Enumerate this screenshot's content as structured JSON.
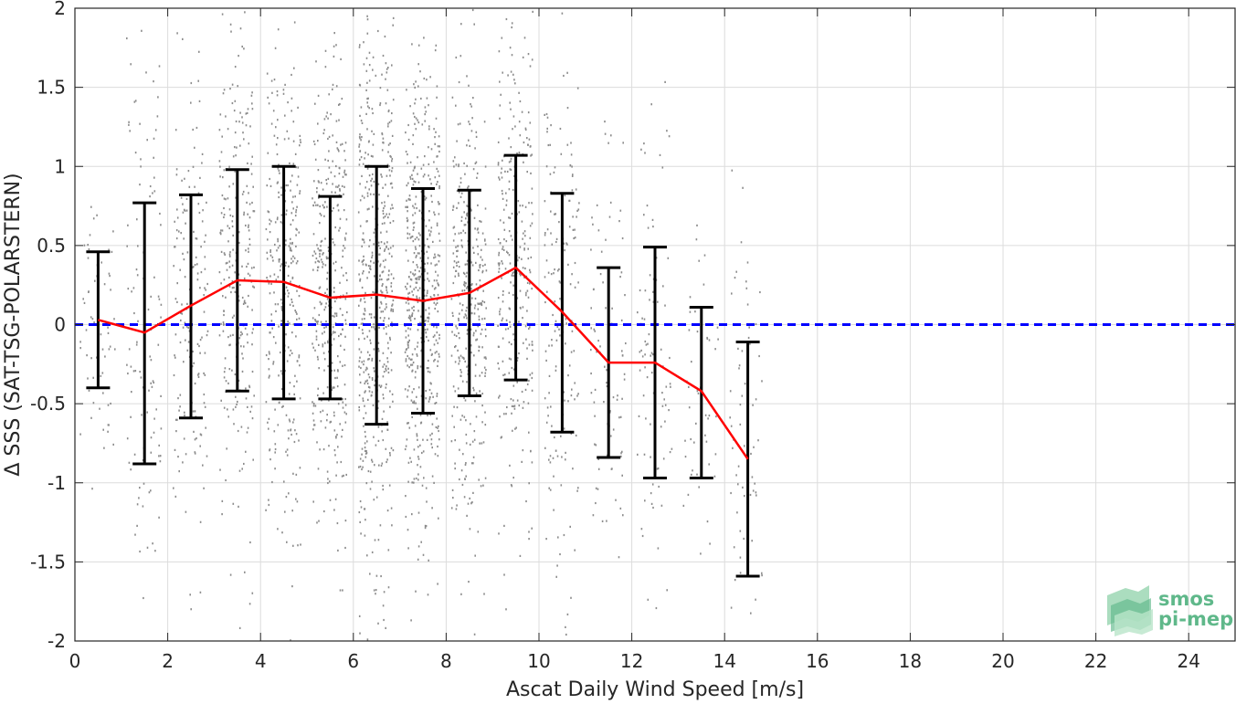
{
  "chart_data": {
    "type": "scatter",
    "xlabel": "Ascat Daily Wind Speed [m/s]",
    "ylabel": "Δ SSS (SAT-TSG-POLARSTERN)",
    "xlim": [
      0,
      25
    ],
    "ylim": [
      -2,
      2
    ],
    "x_ticks": [
      0,
      2,
      4,
      6,
      8,
      10,
      12,
      14,
      16,
      18,
      20,
      22,
      24
    ],
    "y_ticks": [
      -2,
      -1.5,
      -1,
      -0.5,
      0,
      0.5,
      1,
      1.5,
      2
    ],
    "y_tick_labels": [
      "-2",
      "-1.5",
      "-1",
      "-0.5",
      "0",
      "0.5",
      "1",
      "1.5",
      "2"
    ],
    "grid": true,
    "colors": {
      "scatter": "#8c8c8c",
      "mean_line": "#ff0000",
      "error_bars": "#000000",
      "zero_line": "#0000ff",
      "grid": "#dcdcdc"
    },
    "scatter_clusters": [
      {
        "x": 0.5,
        "mean": 0.03,
        "std": 0.4,
        "n": 60
      },
      {
        "x": 1.5,
        "mean": -0.05,
        "std": 0.8,
        "n": 110
      },
      {
        "x": 2.5,
        "mean": 0.12,
        "std": 0.68,
        "n": 170
      },
      {
        "x": 3.5,
        "mean": 0.28,
        "std": 0.7,
        "n": 260
      },
      {
        "x": 4.5,
        "mean": 0.27,
        "std": 0.72,
        "n": 300
      },
      {
        "x": 5.5,
        "mean": 0.17,
        "std": 0.64,
        "n": 360
      },
      {
        "x": 6.5,
        "mean": 0.19,
        "std": 0.8,
        "n": 520
      },
      {
        "x": 7.5,
        "mean": 0.15,
        "std": 0.7,
        "n": 500
      },
      {
        "x": 8.5,
        "mean": 0.2,
        "std": 0.65,
        "n": 360
      },
      {
        "x": 9.5,
        "mean": 0.36,
        "std": 0.7,
        "n": 300
      },
      {
        "x": 10.5,
        "mean": 0.08,
        "std": 0.75,
        "n": 170
      },
      {
        "x": 11.5,
        "mean": -0.24,
        "std": 0.6,
        "n": 90
      },
      {
        "x": 12.5,
        "mean": -0.24,
        "std": 0.72,
        "n": 90
      },
      {
        "x": 13.5,
        "mean": -0.42,
        "std": 0.54,
        "n": 50
      },
      {
        "x": 14.5,
        "mean": -0.85,
        "std": 0.74,
        "n": 70
      }
    ],
    "series": [
      {
        "kind": "mean_with_std",
        "x": [
          0.5,
          1.5,
          2.5,
          3.5,
          4.5,
          5.5,
          6.5,
          7.5,
          8.5,
          9.5,
          10.5,
          11.5,
          12.5,
          13.5,
          14.5
        ],
        "mean": [
          0.03,
          -0.05,
          0.12,
          0.28,
          0.27,
          0.17,
          0.19,
          0.15,
          0.2,
          0.36,
          0.08,
          -0.24,
          -0.24,
          -0.42,
          -0.85
        ],
        "upper": [
          0.46,
          0.77,
          0.82,
          0.98,
          1.0,
          0.81,
          1.0,
          0.86,
          0.85,
          1.07,
          0.83,
          0.36,
          0.49,
          0.11,
          -0.11
        ],
        "lower": [
          -0.4,
          -0.88,
          -0.59,
          -0.42,
          -0.47,
          -0.47,
          -0.63,
          -0.56,
          -0.45,
          -0.35,
          -0.68,
          -0.84,
          -0.97,
          -0.97,
          -1.59
        ]
      },
      {
        "kind": "reference",
        "y": 0,
        "style": "dashed"
      }
    ]
  },
  "logo": {
    "line1": "smos",
    "line2": "pi-mep",
    "text_color": "#5fb88a"
  }
}
